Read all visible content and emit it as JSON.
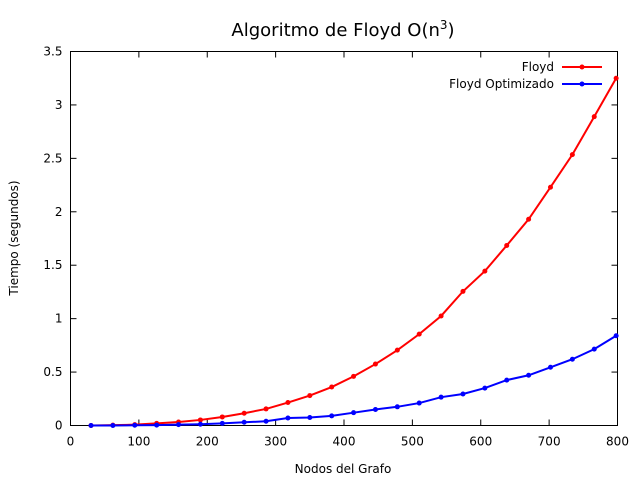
{
  "chart_data": {
    "type": "line",
    "title": "Algoritmo de Floyd O(n",
    "title_superscript": "3",
    "title_suffix": ")",
    "xlabel": "Nodos del Grafo",
    "ylabel": "Tiempo (segundos)",
    "xlim": [
      0,
      800
    ],
    "ylim": [
      0,
      3.5
    ],
    "x_ticks": [
      0,
      100,
      200,
      300,
      400,
      500,
      600,
      700,
      800
    ],
    "y_ticks": [
      0,
      0.5,
      1,
      1.5,
      2,
      2.5,
      3,
      3.5
    ],
    "x_tick_labels": [
      "0",
      "100",
      "200",
      "300",
      "400",
      "500",
      "600",
      "700",
      "800"
    ],
    "y_tick_labels": [
      "0",
      "0.5",
      "1",
      "1.5",
      "2",
      "2.5",
      "3",
      "3.5"
    ],
    "grid": false,
    "legend_position": "top-right",
    "x": [
      30,
      62,
      94,
      126,
      158,
      190,
      222,
      254,
      286,
      318,
      350,
      382,
      414,
      446,
      478,
      510,
      542,
      574,
      606,
      638,
      670,
      702,
      734,
      766,
      798
    ],
    "series": [
      {
        "name": "Floyd",
        "color": "#ff0000",
        "values": [
          0.0,
          0.003,
          0.008,
          0.02,
          0.033,
          0.052,
          0.08,
          0.115,
          0.155,
          0.215,
          0.28,
          0.36,
          0.46,
          0.575,
          0.705,
          0.855,
          1.025,
          1.255,
          1.445,
          1.685,
          1.93,
          2.23,
          2.535,
          2.89,
          3.25
        ]
      },
      {
        "name": "Floyd Optimizado",
        "color": "#0000ff",
        "values": [
          0.0,
          0.0,
          0.002,
          0.004,
          0.008,
          0.012,
          0.02,
          0.03,
          0.04,
          0.07,
          0.075,
          0.09,
          0.12,
          0.15,
          0.175,
          0.21,
          0.265,
          0.295,
          0.35,
          0.425,
          0.47,
          0.545,
          0.62,
          0.715,
          0.84
        ]
      }
    ]
  }
}
